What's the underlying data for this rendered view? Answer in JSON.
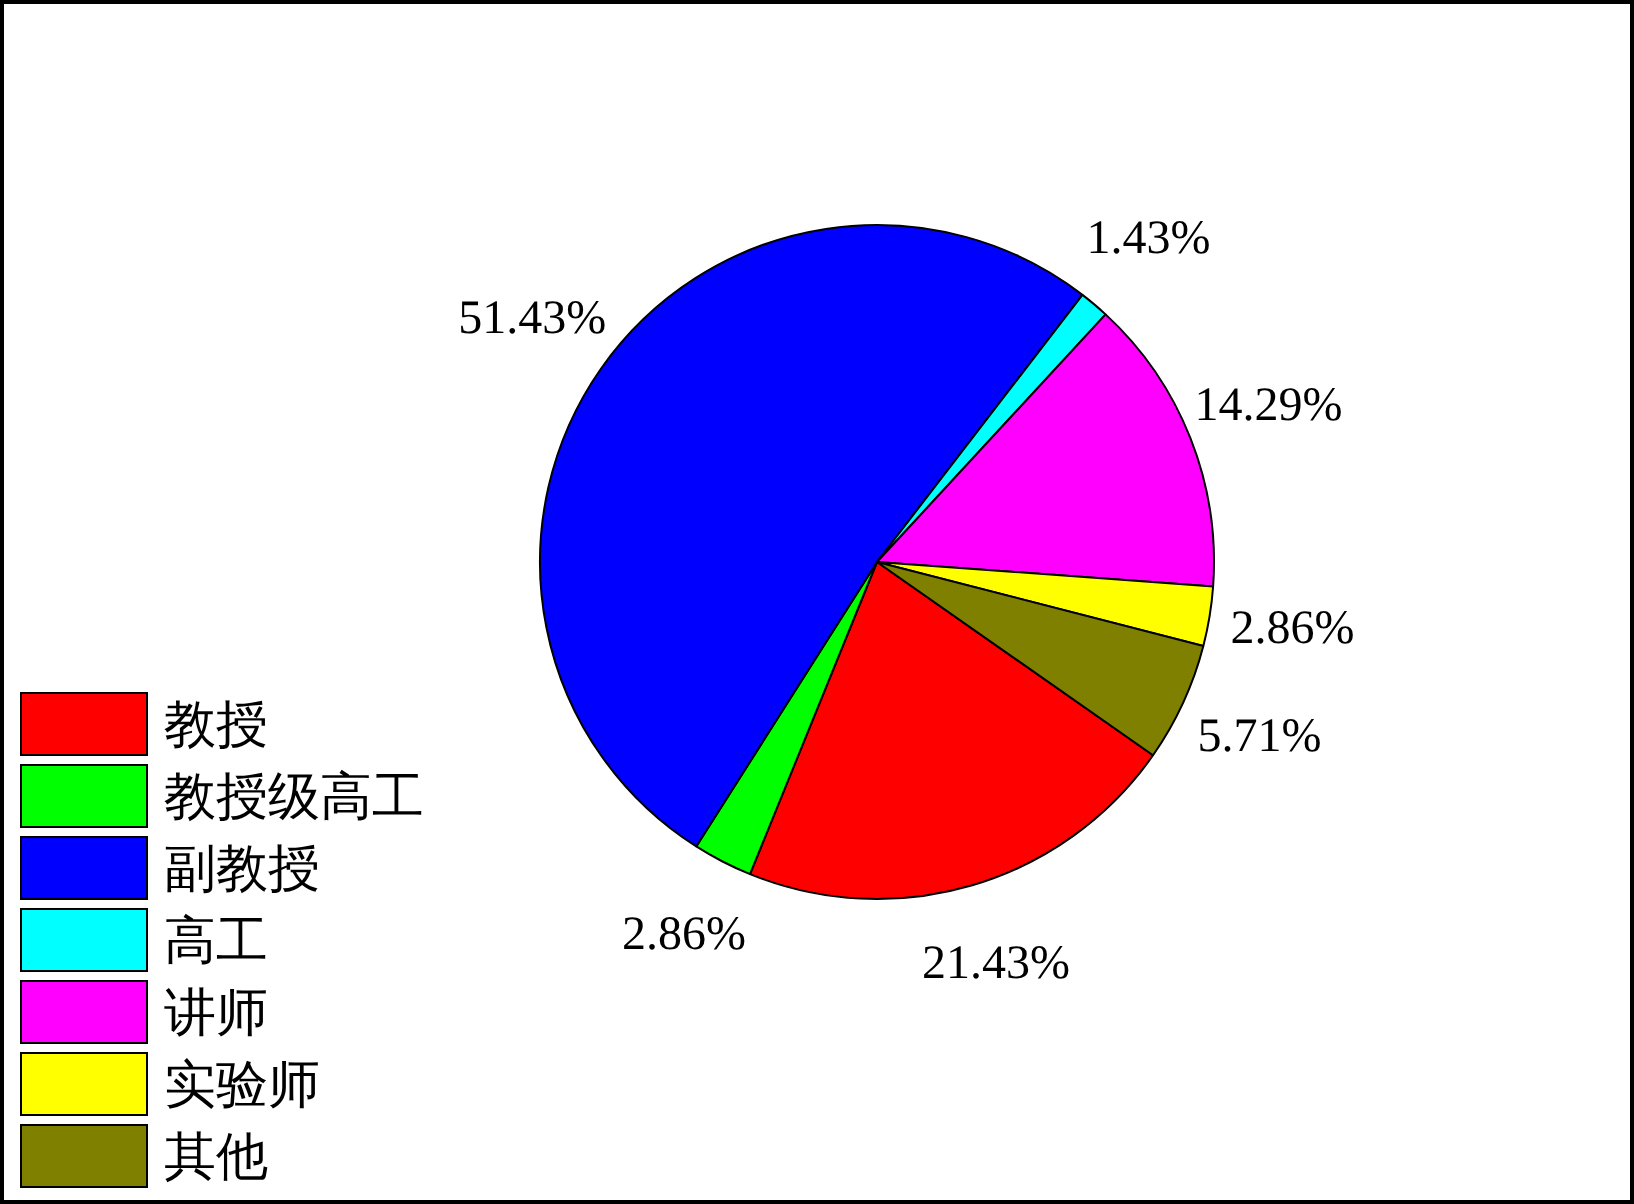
{
  "chart_data": {
    "type": "pie",
    "categories": [
      "教授",
      "教授级高工",
      "副教授",
      "高工",
      "讲师",
      "实验师",
      "其他"
    ],
    "values": [
      21.43,
      2.86,
      51.43,
      1.43,
      14.29,
      2.86,
      5.71
    ],
    "colors": [
      "#ff0000",
      "#00ff00",
      "#0000ff",
      "#00ffff",
      "#ff00ff",
      "#ffff00",
      "#808000"
    ],
    "value_labels": [
      "21.43%",
      "2.86%",
      "51.43%",
      "1.43%",
      "14.29%",
      "2.86%",
      "5.71%"
    ],
    "legend": "bottom left"
  }
}
